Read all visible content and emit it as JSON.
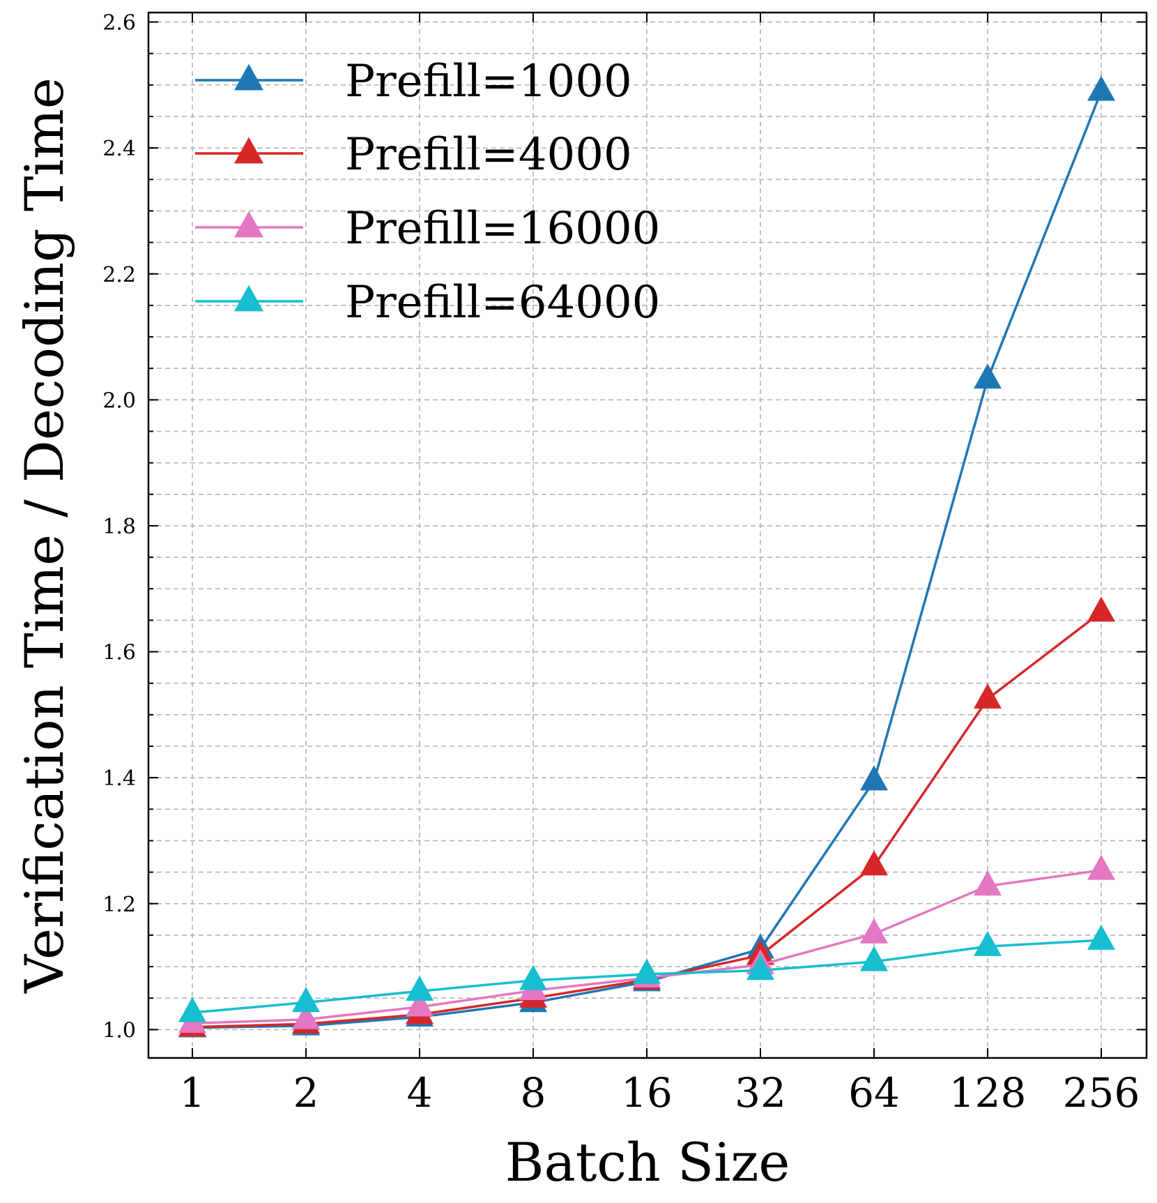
{
  "chart_data": {
    "type": "line",
    "xlabel": "Batch Size",
    "ylabel": "Verification Time / Decoding Time",
    "categories": [
      "1",
      "2",
      "4",
      "8",
      "16",
      "32",
      "64",
      "128",
      "256"
    ],
    "ylim": [
      0.955,
      2.615
    ],
    "yticks": [
      "1.0",
      "1.2",
      "1.4",
      "1.6",
      "1.8",
      "2.0",
      "2.2",
      "2.4",
      "2.6"
    ],
    "ytick_values": [
      1.0,
      1.2,
      1.4,
      1.6,
      1.8,
      2.0,
      2.2,
      2.4,
      2.6
    ],
    "grid": true,
    "legend_position": "top-left",
    "series": [
      {
        "name": "Prefill=1000",
        "color": "#1f77b4",
        "marker": "triangle",
        "values": [
          1.003,
          1.006,
          1.02,
          1.043,
          1.076,
          1.128,
          1.395,
          2.033,
          2.49
        ]
      },
      {
        "name": "Prefill=4000",
        "color": "#d62728",
        "marker": "triangle",
        "values": [
          1.004,
          1.009,
          1.024,
          1.05,
          1.079,
          1.118,
          1.26,
          1.525,
          1.663
        ]
      },
      {
        "name": "Prefill=16000",
        "color": "#e377c2",
        "marker": "triangle",
        "values": [
          1.01,
          1.016,
          1.036,
          1.062,
          1.082,
          1.103,
          1.152,
          1.228,
          1.253
        ]
      },
      {
        "name": "Prefill=64000",
        "color": "#17becf",
        "marker": "triangle",
        "values": [
          1.027,
          1.043,
          1.061,
          1.078,
          1.088,
          1.094,
          1.108,
          1.132,
          1.142
        ]
      }
    ]
  }
}
